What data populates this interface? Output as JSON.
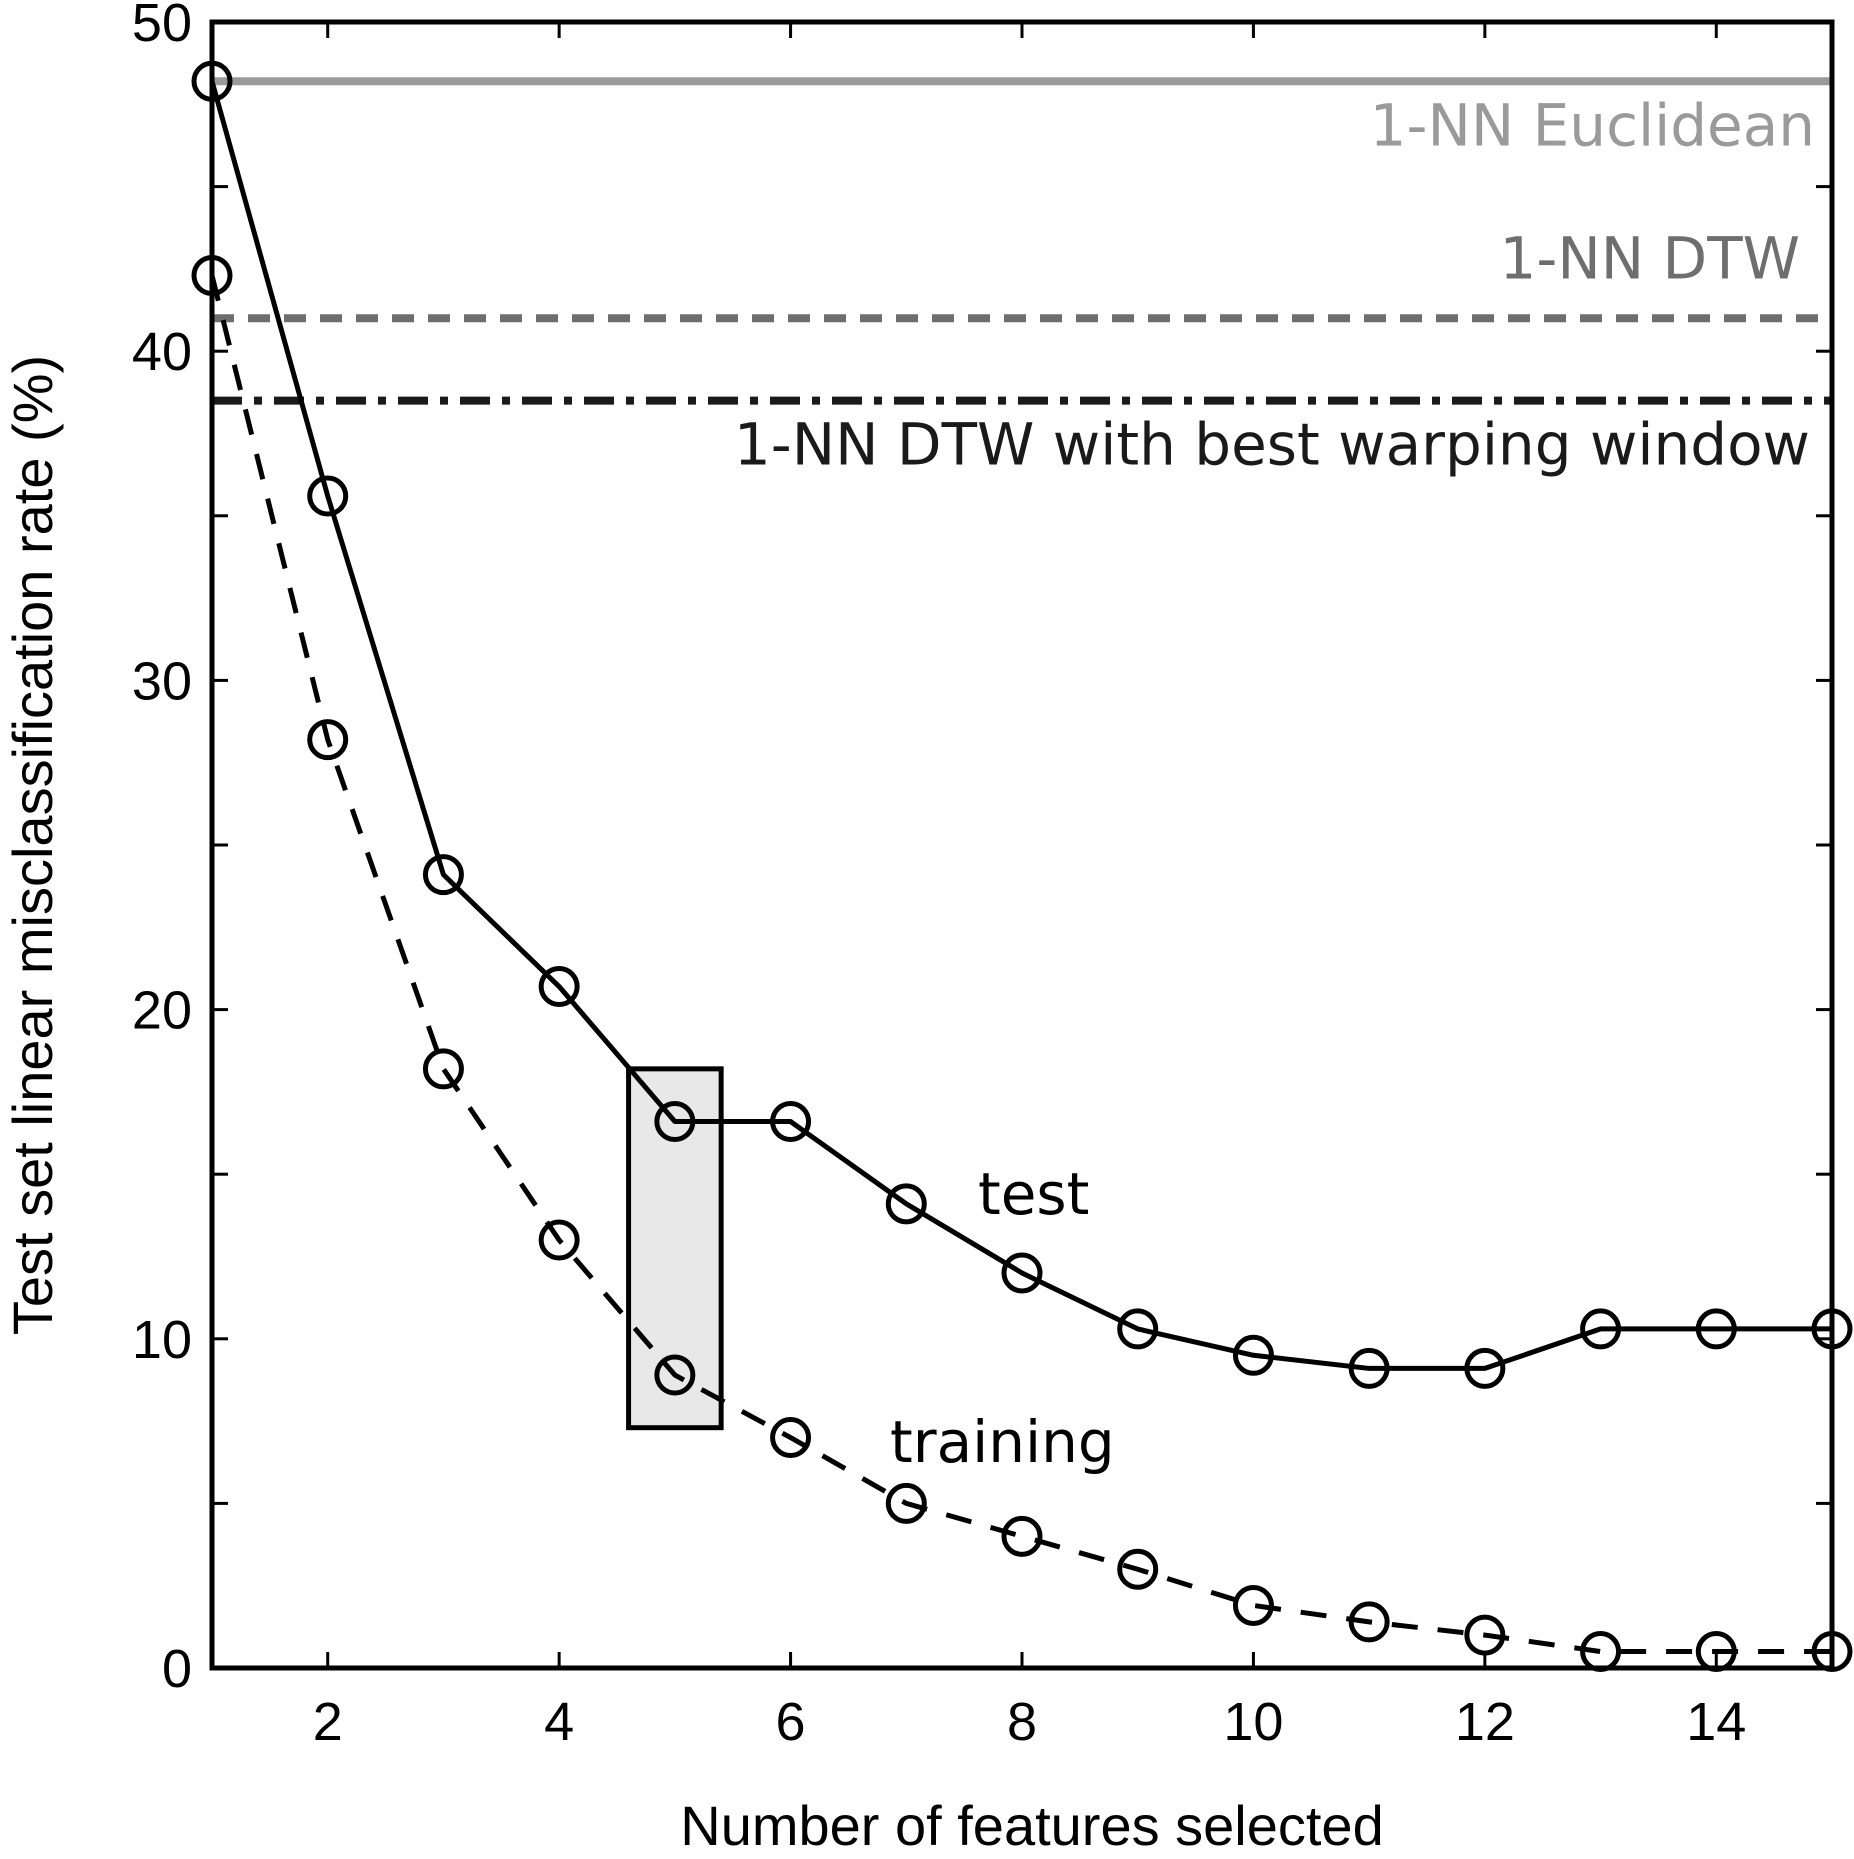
{
  "chart_data": {
    "type": "line",
    "xlabel": "Number of features selected",
    "ylabel": "Test set linear misclassification rate (%)",
    "xlim": [
      1,
      15
    ],
    "ylim": [
      0,
      50
    ],
    "xticks": [
      2,
      4,
      6,
      8,
      10,
      12,
      14
    ],
    "yticks": [
      0,
      10,
      20,
      30,
      40,
      50
    ],
    "x": [
      1,
      2,
      3,
      4,
      5,
      6,
      7,
      8,
      9,
      10,
      11,
      12,
      13,
      14,
      15
    ],
    "series": [
      {
        "name": "test",
        "style": "solid",
        "marker": "open-circle",
        "values": [
          48.2,
          35.6,
          24.1,
          20.7,
          16.6,
          16.6,
          14.1,
          12.0,
          10.3,
          9.5,
          9.1,
          9.1,
          10.3,
          10.3,
          10.3
        ]
      },
      {
        "name": "training",
        "style": "dashed",
        "marker": "open-circle",
        "values": [
          42.3,
          28.2,
          18.2,
          13.0,
          8.9,
          7.0,
          5.0,
          4.0,
          3.0,
          1.9,
          1.4,
          1.0,
          0.5,
          0.5,
          0.5
        ]
      }
    ],
    "reference_lines": [
      {
        "name": "1-NN Euclidean",
        "y": 48.2,
        "style": "solid",
        "color": "#9a9a9a"
      },
      {
        "name": "1-NN DTW",
        "y": 41.0,
        "style": "dashed",
        "color": "#6e6e6e"
      },
      {
        "name": "1-NN DTW with best warping window",
        "y": 38.5,
        "style": "dashdot",
        "color": "#1a1a1a"
      }
    ],
    "highlight_box": {
      "x_range": [
        4.6,
        5.4
      ],
      "y_range": [
        7.3,
        18.2
      ],
      "fill": "#e8e8e8"
    },
    "grid": false,
    "legend": "none"
  }
}
